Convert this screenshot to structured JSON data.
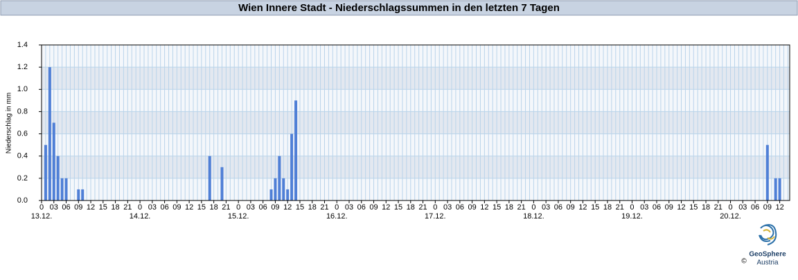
{
  "chart_data": {
    "type": "bar",
    "title": "Wien Innere Stadt - Niederschlagssummen in den letzten 7 Tagen",
    "y_label": "Niederschlag in mm",
    "categories": [
      "0",
      null,
      null,
      "03",
      null,
      null,
      "06",
      null,
      null,
      "09",
      null,
      null,
      "12",
      null,
      null,
      "15",
      null,
      null,
      "18",
      null,
      null,
      "21",
      null,
      null,
      "0",
      null,
      null,
      "03",
      null,
      null,
      "06",
      null,
      null,
      "09",
      null,
      null,
      "12",
      null,
      null,
      "15",
      null,
      null,
      "18",
      null,
      null,
      "21",
      null,
      null,
      "0",
      null,
      null,
      "03",
      null,
      null,
      "06",
      null,
      null,
      "09",
      null,
      null,
      "12",
      null,
      null,
      "15",
      null,
      null,
      "18",
      null,
      null,
      "21",
      null,
      null,
      "0",
      null,
      null,
      "03",
      null,
      null,
      "06",
      null,
      null,
      "09",
      null,
      null,
      "12",
      null,
      null,
      "15",
      null,
      null,
      "18",
      null,
      null,
      "21",
      null,
      null,
      "0",
      null,
      null,
      "03",
      null,
      null,
      "06",
      null,
      null,
      "09",
      null,
      null,
      "12",
      null,
      null,
      "15",
      null,
      null,
      "18",
      null,
      null,
      "21",
      null,
      null,
      "0",
      null,
      null,
      "03",
      null,
      null,
      "06",
      null,
      null,
      "09",
      null,
      null,
      "12",
      null,
      null,
      "15",
      null,
      null,
      "18",
      null,
      null,
      "21",
      null,
      null,
      "0",
      null,
      null,
      "03",
      null,
      null,
      "06",
      null,
      null,
      "09",
      null,
      null,
      "12",
      null,
      null,
      "15",
      null,
      null,
      "18",
      null,
      null,
      "21",
      null,
      null,
      "0",
      null,
      null,
      "03",
      null,
      null,
      "06",
      null,
      null,
      "09",
      null,
      null,
      "12",
      null,
      null
    ],
    "days": [
      "13.12.",
      "14.12.",
      "15.12.",
      "16.12.",
      "17.12.",
      "18.12.",
      "19.12.",
      "20.12."
    ],
    "values": [
      0,
      0.5,
      1.2,
      0.7,
      0.4,
      0.2,
      0.2,
      0,
      0,
      0.1,
      0.1,
      0,
      0,
      0,
      0,
      0,
      0,
      0,
      0,
      0,
      0,
      0,
      0,
      0,
      0,
      0,
      0,
      0,
      0,
      0,
      0,
      0,
      0,
      0,
      0,
      0,
      0,
      0,
      0,
      0,
      0,
      0.4,
      0,
      0,
      0.3,
      0,
      0,
      0,
      0,
      0,
      0,
      0,
      0,
      0,
      0,
      0,
      0.1,
      0.2,
      0.4,
      0.2,
      0.1,
      0.6,
      0.9,
      0,
      0,
      0,
      0,
      0,
      0,
      0,
      0,
      0,
      0,
      0,
      0,
      0,
      0,
      0,
      0,
      0,
      0,
      0,
      0,
      0,
      0,
      0,
      0,
      0,
      0,
      0,
      0,
      0,
      0,
      0,
      0,
      0,
      0,
      0,
      0,
      0,
      0,
      0,
      0,
      0,
      0,
      0,
      0,
      0,
      0,
      0,
      0,
      0,
      0,
      0,
      0,
      0,
      0,
      0,
      0,
      0,
      0,
      0,
      0,
      0,
      0,
      0,
      0,
      0,
      0,
      0,
      0,
      0,
      0,
      0,
      0,
      0,
      0,
      0,
      0,
      0,
      0,
      0,
      0,
      0,
      0,
      0,
      0,
      0,
      0,
      0,
      0,
      0,
      0,
      0,
      0,
      0,
      0,
      0,
      0,
      0,
      0,
      0,
      0,
      0,
      0,
      0,
      0,
      0,
      0,
      0,
      0,
      0,
      0,
      0,
      0,
      0,
      0,
      0.5,
      0,
      0.2,
      0.2,
      0,
      0
    ],
    "color": "#4f7fd6",
    "ylim": [
      0,
      1.4
    ],
    "yticks": [
      {
        "value": 0,
        "label": "0.0"
      },
      0.2,
      0.4,
      0.6,
      0.8,
      {
        "value": 1,
        "label": "1.0"
      },
      1.2,
      1.4
    ],
    "grid": true
  },
  "logo": {
    "name": "GeoSphere",
    "sub": "Austria",
    "copyright": "©"
  }
}
